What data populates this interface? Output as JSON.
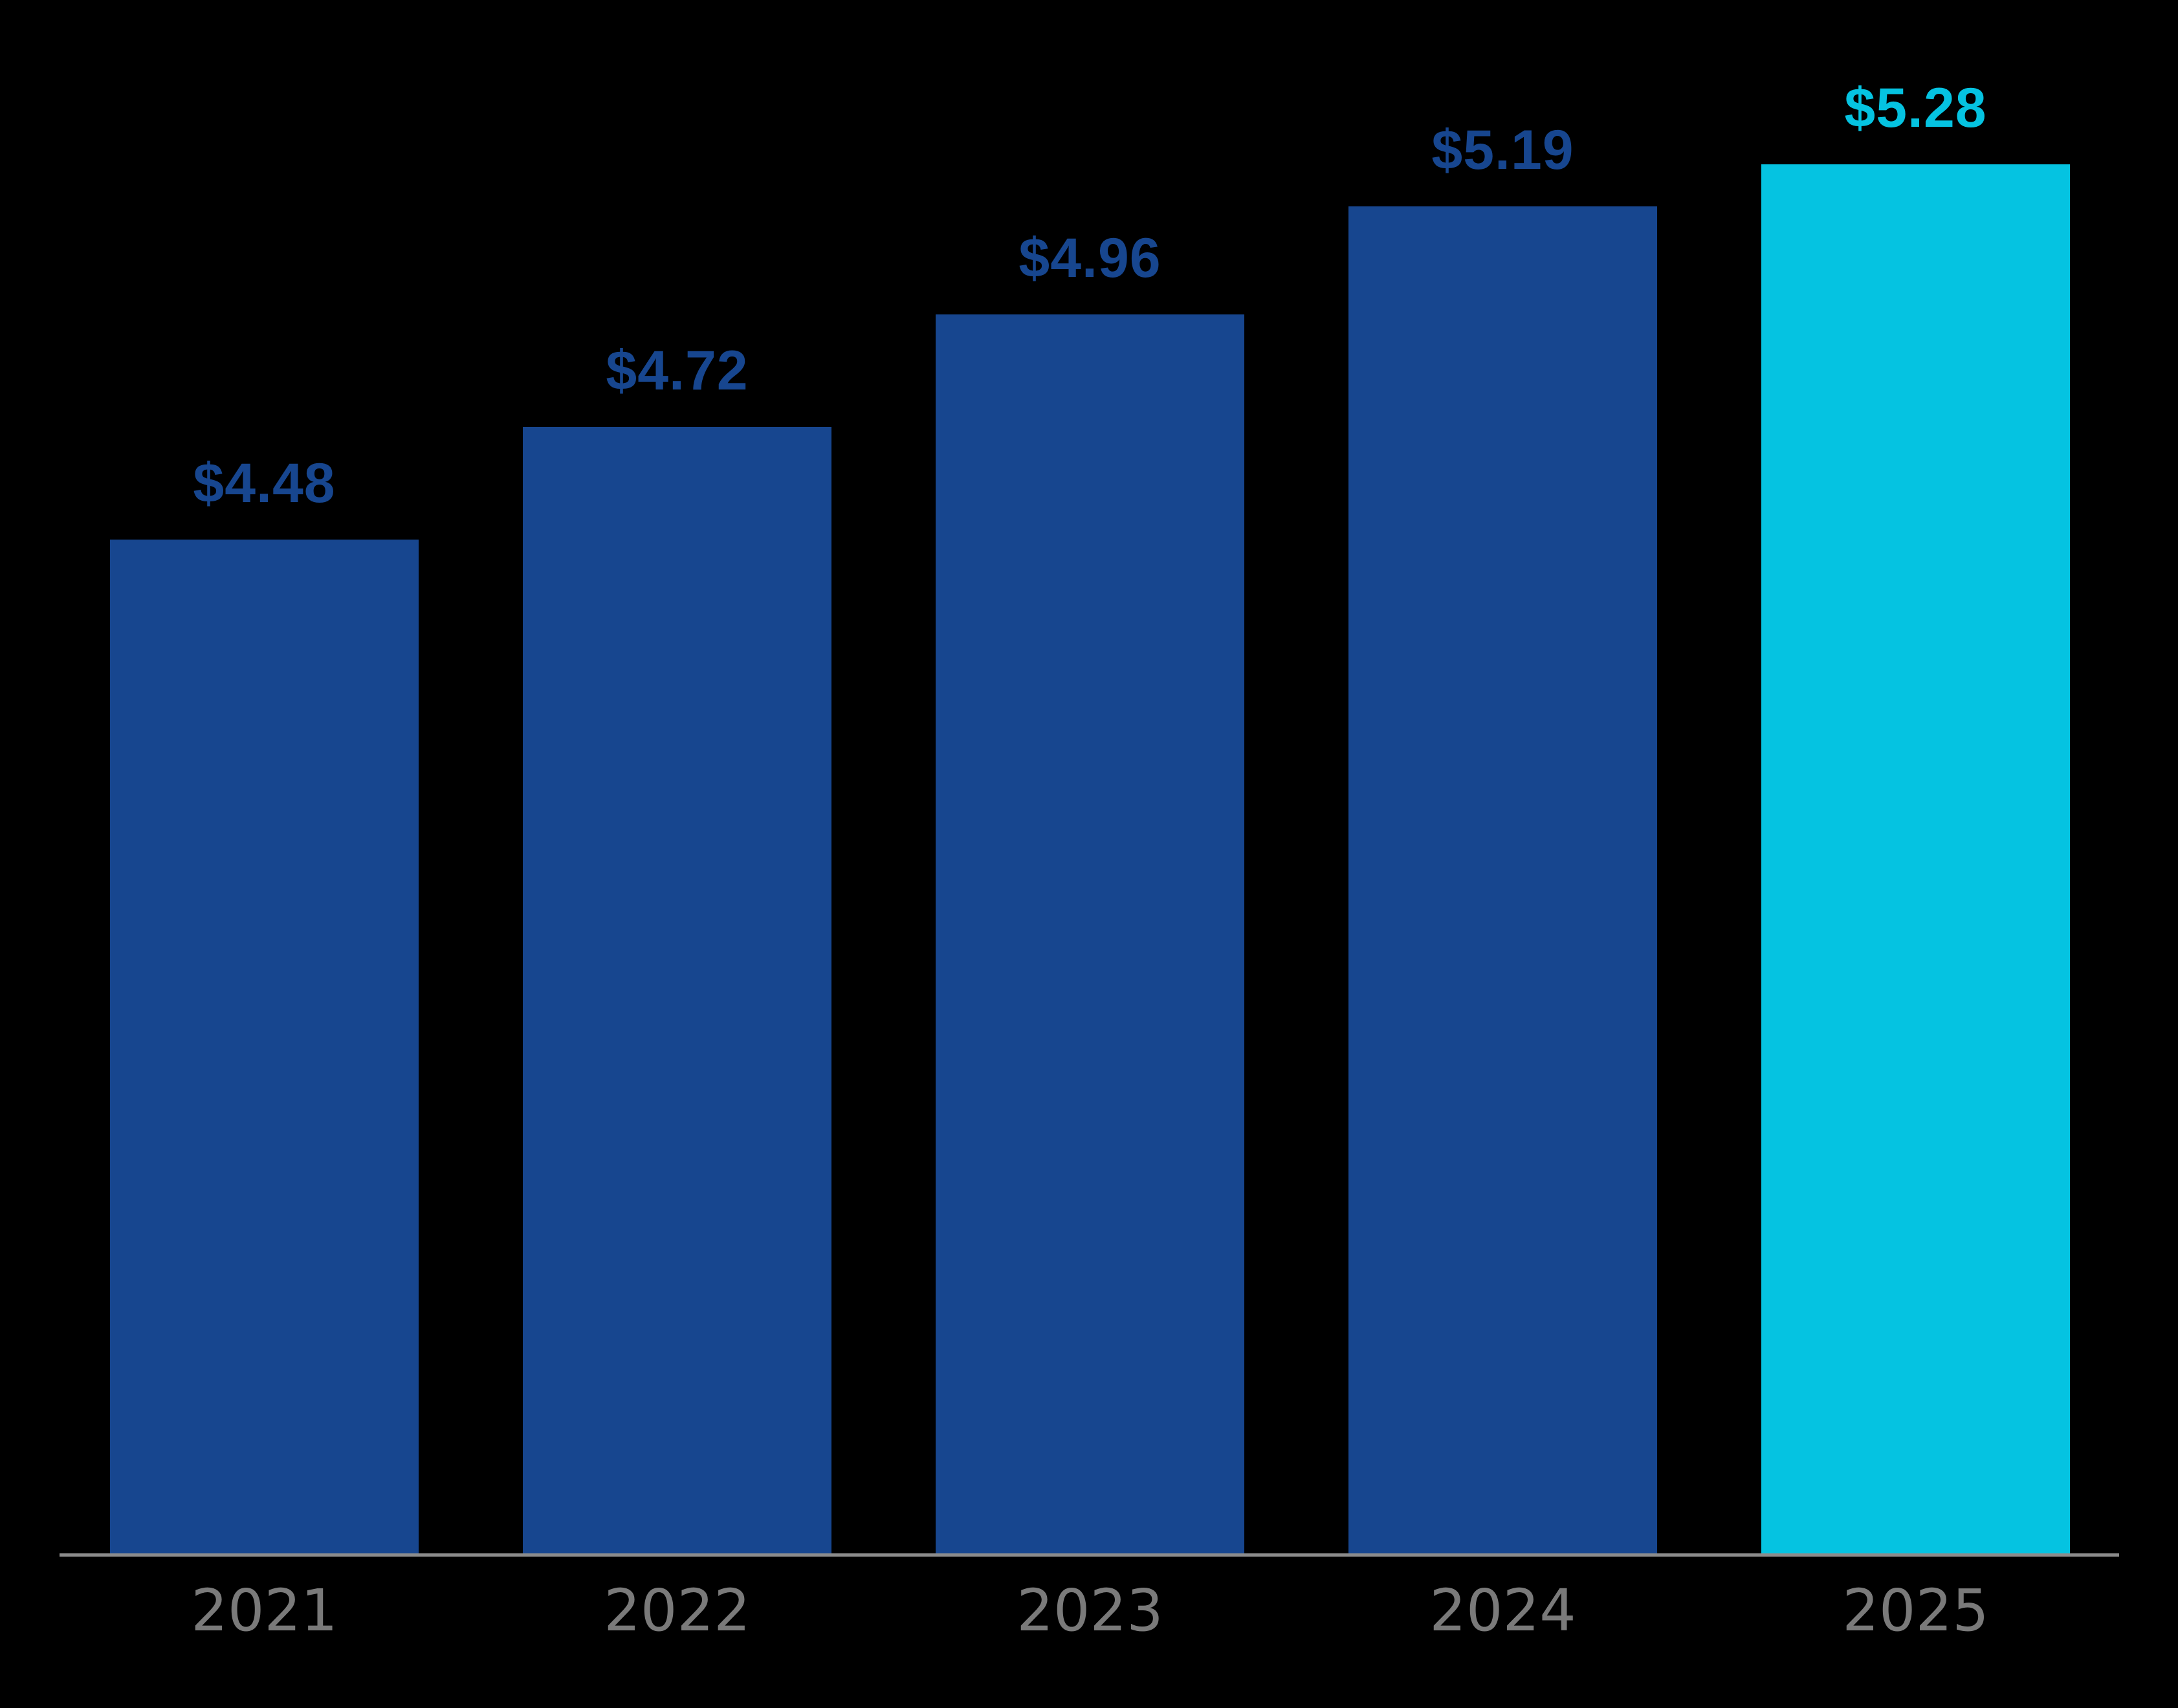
{
  "chart_data": {
    "type": "bar",
    "title": "",
    "xlabel": "",
    "ylabel": "",
    "categories": [
      "2021",
      "2022",
      "2023",
      "2024",
      "2025"
    ],
    "values": [
      4.48,
      4.72,
      4.96,
      5.19,
      5.28
    ],
    "value_labels": [
      "$4.48",
      "$4.72",
      "$4.96",
      "$5.19",
      "$5.28"
    ],
    "bar_colors": [
      "#17468F",
      "#17468F",
      "#17468F",
      "#17468F",
      "#05C3E1"
    ],
    "value_label_colors": [
      "#17468F",
      "#17468F",
      "#17468F",
      "#17468F",
      "#05C3E1"
    ],
    "highlighted_category": "2025",
    "ylim": [
      2.32,
      5.63
    ],
    "grid": false,
    "legend": false,
    "colors": {
      "background": "#000000",
      "bar_default": "#17468F",
      "bar_highlight": "#05C3E1",
      "axis_line": "#8C8C8C",
      "tick_label": "#7A7A7A"
    }
  }
}
